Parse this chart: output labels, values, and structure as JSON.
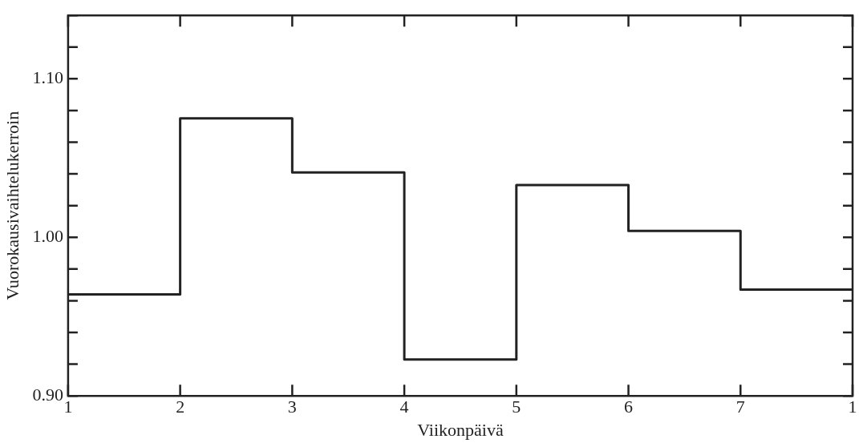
{
  "chart_data": {
    "type": "step",
    "xlabel": "Viikonpäivä",
    "ylabel": "Vuorokausivaihtelukerroin",
    "categories": [
      "1",
      "2",
      "3",
      "4",
      "5",
      "6",
      "7",
      "1"
    ],
    "series": [
      {
        "color": "#222222",
        "values": [
          0.964,
          1.075,
          1.041,
          0.923,
          1.033,
          1.004,
          0.967,
          0.967
        ]
      }
    ],
    "ylim": [
      0.9,
      1.14
    ],
    "yticks": [
      {
        "value": 0.9,
        "label": "0.90"
      },
      {
        "value": 0.92,
        "label": null
      },
      {
        "value": 0.94,
        "label": null
      },
      {
        "value": 0.96,
        "label": null
      },
      {
        "value": 0.98,
        "label": null
      },
      {
        "value": 1.0,
        "label": "1.00"
      },
      {
        "value": 1.02,
        "label": null
      },
      {
        "value": 1.04,
        "label": null
      },
      {
        "value": 1.06,
        "label": null
      },
      {
        "value": 1.08,
        "label": null
      },
      {
        "value": 1.1,
        "label": "1.10"
      },
      {
        "value": 1.12,
        "label": null
      },
      {
        "value": 1.14,
        "label": null
      }
    ],
    "grid": false,
    "legend": false,
    "marker": "none",
    "line_style": "solid"
  }
}
